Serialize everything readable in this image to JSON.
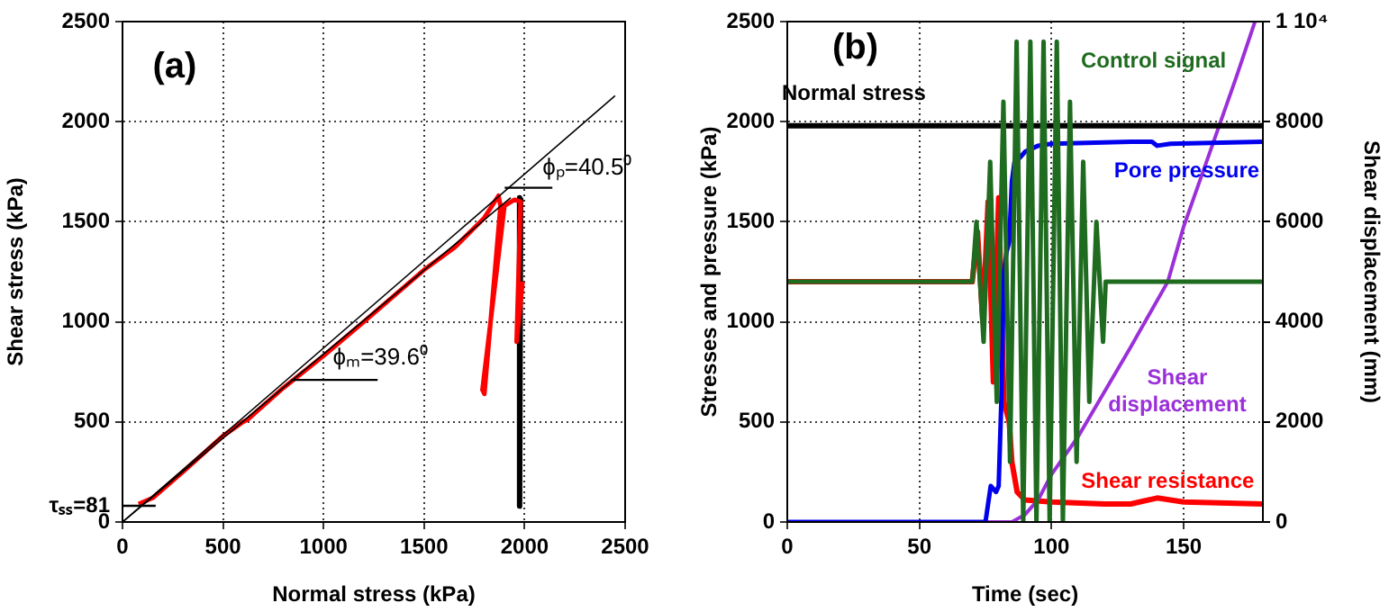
{
  "chart_data": [
    {
      "type": "line",
      "xlabel": "Normal stress (kPa)",
      "ylabel": "Shear stress (kPa)",
      "xlim": [
        0,
        2500
      ],
      "ylim": [
        0,
        2500
      ],
      "xticks": [
        0,
        500,
        1000,
        1500,
        2000,
        2500
      ],
      "yticks": [
        0,
        {
          "value": 81,
          "label": "τₛₛ=81"
        },
        500,
        1000,
        1500,
        2000,
        2500
      ],
      "grid": true,
      "legend": false,
      "marker": "none",
      "line_style": "solid",
      "annotations": [
        "(a)",
        "ϕₚ=40.5⁰",
        "ϕₘ=39.6⁰"
      ],
      "series": [
        {
          "color": "#000000",
          "x": [
            0,
            2450
          ],
          "values": [
            0,
            2130
          ]
        },
        {
          "color": "#000000",
          "x": [
            0,
            1931
          ],
          "values": [
            0,
            1620
          ]
        },
        {
          "color": "#000000",
          "x": [
            838,
            1269
          ],
          "values": [
            710,
            710
          ]
        },
        {
          "color": "#000000",
          "x": [
            1901,
            2138
          ],
          "values": [
            1670,
            1670
          ]
        },
        {
          "color": "#000000",
          "x": [
            0,
            165
          ],
          "values": [
            81,
            81
          ]
        },
        {
          "color": "#ff0000",
          "x": [
            80,
            150,
            300,
            500,
            600,
            620,
            800,
            1000,
            1200,
            1500,
            1650,
            1800,
            1870,
            1880,
            1800,
            1790,
            1900,
            1950,
            1980,
            1960,
            1990
          ],
          "values": [
            90,
            120,
            250,
            430,
            500,
            510,
            670,
            830,
            1000,
            1260,
            1370,
            1520,
            1630,
            1580,
            640,
            660,
            1580,
            1610,
            1600,
            900,
            1200
          ]
        },
        {
          "color": "#000000",
          "x": [
            1980,
            1975,
            1985
          ],
          "values": [
            1620,
            80,
            80
          ]
        }
      ]
    },
    {
      "type": "line",
      "xlabel": "Time (sec)",
      "ylabel": "Stresses and pressure (kPa)",
      "y2label": "Shear displacement (mm)",
      "xlim": [
        0,
        180
      ],
      "ylim": [
        0,
        2500
      ],
      "y2lim": [
        0,
        10000
      ],
      "xticks": [
        0,
        50,
        100,
        150
      ],
      "yticks": [
        0,
        500,
        1000,
        1500,
        2000,
        2500
      ],
      "y2ticks": [
        0,
        2000,
        4000,
        6000,
        8000,
        {
          "value": 10000,
          "label": "1 10⁴"
        }
      ],
      "grid": true,
      "legend": false,
      "marker": "none",
      "line_style": "solid",
      "annotations": [
        "(b)"
      ],
      "series": [
        {
          "name": "Control signal",
          "color": "#1f6b1f",
          "x": [
            0,
            70,
            71.6,
            74.3,
            76.8,
            79.3,
            81.8,
            84.3,
            86.8,
            89.3,
            92,
            94.3,
            97,
            99.3,
            102,
            104.3,
            107,
            109.5,
            112,
            114.3,
            117,
            119.5,
            120.5,
            180
          ],
          "values": [
            1200,
            1200,
            1500,
            900,
            1800,
            600,
            2100,
            300,
            2400,
            0,
            2400,
            0,
            2400,
            0,
            2400,
            0,
            2100,
            300,
            1800,
            600,
            1500,
            900,
            1200,
            1200
          ]
        },
        {
          "name": "Normal stress",
          "color": "#000000",
          "x": [
            0,
            180
          ],
          "values": [
            1980,
            1980
          ]
        },
        {
          "name": "Pore pressure",
          "color": "#0000ee",
          "x": [
            0,
            72,
            75,
            77,
            79,
            80,
            81,
            82,
            83,
            84,
            85,
            86,
            88,
            90,
            95,
            100,
            130,
            138,
            140,
            145,
            180
          ],
          "values": [
            0,
            0,
            0,
            180,
            150,
            180,
            600,
            1250,
            1350,
            1400,
            1700,
            1800,
            1820,
            1850,
            1880,
            1890,
            1900,
            1900,
            1880,
            1890,
            1900
          ]
        },
        {
          "name": "Shear displacement",
          "color": "#9b30d9",
          "axis": "y2",
          "x": [
            0,
            85,
            90,
            95,
            100,
            110,
            120,
            130,
            144,
            150,
            160,
            170,
            177
          ],
          "values": [
            0,
            0,
            150,
            450,
            950,
            1700,
            2600,
            3500,
            4800,
            5900,
            7400,
            8900,
            10000
          ]
        },
        {
          "name": "Shear resistance",
          "color": "#ff0000",
          "x": [
            0,
            70,
            72,
            74,
            76,
            78,
            80,
            82,
            84,
            85,
            87,
            90,
            100,
            120,
            130,
            140,
            150,
            180
          ],
          "values": [
            1200,
            1200,
            1450,
            1000,
            1600,
            700,
            1620,
            600,
            500,
            300,
            150,
            110,
            100,
            90,
            90,
            120,
            100,
            90
          ]
        }
      ]
    }
  ]
}
